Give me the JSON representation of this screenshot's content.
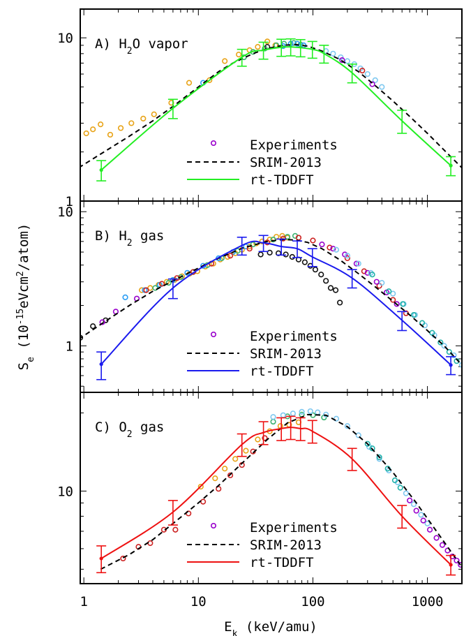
{
  "chart_data": [
    {
      "type": "scatter",
      "panel_label_parts": [
        "A) H",
        "2",
        "O vapor"
      ],
      "x_scale": "log",
      "y_scale": "log",
      "xlim": [
        1,
        2000
      ],
      "ylim": [
        1,
        15
      ],
      "y_ticks": [
        {
          "value": 1,
          "label": "1"
        },
        {
          "value": 10,
          "label": "10"
        }
      ],
      "legend": {
        "position": "bottom-right",
        "entries": [
          {
            "name": "Experiments",
            "style": "marker",
            "color": "#9900cc"
          },
          {
            "name": "SRIM-2013",
            "style": "dashed",
            "color": "#000000"
          },
          {
            "name": "rt-TDDFT",
            "style": "solid",
            "color": "#22ee22"
          }
        ]
      },
      "series": [
        {
          "name": "Experiments",
          "kind": "points",
          "color": "#e8a317",
          "x": [
            1.05,
            1.2,
            1.4,
            1.7,
            2.1,
            2.6,
            3.3,
            4.1,
            5.8,
            8.3,
            12.5,
            17,
            22.5,
            28,
            33,
            40,
            47
          ],
          "y": [
            2.6,
            2.75,
            2.95,
            2.55,
            2.8,
            3.0,
            3.2,
            3.4,
            4.0,
            5.3,
            5.5,
            7.2,
            7.9,
            8.4,
            8.8,
            9.5,
            9.0
          ]
        },
        {
          "name": "Experiments",
          "kind": "points",
          "color": "#3cb371",
          "x": [
            25,
            30,
            38,
            48,
            56,
            68,
            78
          ],
          "y": [
            7.6,
            8.2,
            8.6,
            9.0,
            9.2,
            9.3,
            9.1
          ]
        },
        {
          "name": "Experiments",
          "kind": "points",
          "color": "#2a9df4",
          "x": [
            11,
            55,
            64,
            73,
            83
          ],
          "y": [
            5.3,
            8.9,
            9.2,
            9.2,
            9.0
          ]
        },
        {
          "name": "Experiments",
          "kind": "points",
          "color": "#7ec8f0",
          "x": [
            130,
            150,
            175,
            200,
            230,
            260,
            300,
            350,
            400
          ],
          "y": [
            8.3,
            8.0,
            7.6,
            7.2,
            6.9,
            6.5,
            6.0,
            5.5,
            5.0
          ]
        },
        {
          "name": "Experiments",
          "kind": "points",
          "color": "#9900cc",
          "x": [
            180,
            330
          ],
          "y": [
            7.3,
            5.2
          ]
        },
        {
          "name": "Experiments",
          "kind": "points",
          "color": "#cc2222",
          "x": [
            270
          ],
          "y": [
            6.3
          ]
        },
        {
          "name": "Experiments",
          "kind": "points",
          "color": "#222222",
          "x": [
            40
          ],
          "y": [
            8.8
          ]
        },
        {
          "name": "SRIM-2013",
          "kind": "dashed",
          "color": "#000000",
          "x": [
            0.9,
            1.5,
            2.5,
            4,
            6,
            10,
            15,
            20,
            30,
            40,
            55,
            70,
            90,
            120,
            170,
            250,
            350,
            500,
            700,
            1000,
            1400,
            2000
          ],
          "y": [
            1.6,
            2.0,
            2.5,
            3.1,
            3.8,
            5.0,
            6.2,
            7.0,
            8.0,
            8.6,
            9.0,
            9.1,
            8.9,
            8.3,
            7.4,
            6.2,
            5.1,
            4.1,
            3.3,
            2.6,
            2.05,
            1.6
          ]
        },
        {
          "name": "rt-TDDFT",
          "kind": "solid",
          "color": "#22ee22",
          "x": [
            1.42,
            6,
            24,
            37,
            53,
            64,
            78,
            99,
            125,
            220,
            600,
            1600
          ],
          "y": [
            1.55,
            3.7,
            7.6,
            8.4,
            8.75,
            8.8,
            8.7,
            8.5,
            8.0,
            6.1,
            3.1,
            1.65
          ],
          "err": [
            0.22,
            0.5,
            0.9,
            1.0,
            1.05,
            1.05,
            1.05,
            1.0,
            1.0,
            0.8,
            0.5,
            0.22
          ],
          "markers_at": [
            0,
            11
          ]
        }
      ]
    },
    {
      "type": "scatter",
      "panel_label_parts": [
        "B) H",
        "2",
        " gas"
      ],
      "x_scale": "log",
      "y_scale": "log",
      "xlim": [
        1,
        2000
      ],
      "ylim": [
        0.45,
        12
      ],
      "y_ticks": [
        {
          "value": 1,
          "label": "1"
        },
        {
          "value": 10,
          "label": "10"
        }
      ],
      "legend": {
        "position": "bottom-right",
        "entries": [
          {
            "name": "Experiments",
            "style": "marker",
            "color": "#9900cc"
          },
          {
            "name": "SRIM-2013",
            "style": "dashed",
            "color": "#000000"
          },
          {
            "name": "rt-TDDFT",
            "style": "solid",
            "color": "#1a1aee"
          }
        ]
      },
      "series": [
        {
          "name": "Experiments",
          "kind": "points",
          "color": "#111111",
          "x": [
            0.93,
            1.2,
            1.55,
            35,
            42,
            50,
            58,
            66,
            75,
            85,
            95,
            105,
            118,
            130,
            143,
            158,
            172
          ],
          "y": [
            1.15,
            1.4,
            1.55,
            4.8,
            4.95,
            4.9,
            4.8,
            4.6,
            4.4,
            4.2,
            3.95,
            3.7,
            3.4,
            3.05,
            2.7,
            2.6,
            2.1
          ]
        },
        {
          "name": "Experiments",
          "kind": "points",
          "color": "#e8a317",
          "x": [
            3.2,
            3.8,
            4.5,
            5.3,
            6.2,
            7.2,
            8.4,
            9.8,
            11.5,
            13.5,
            15.5,
            18,
            21,
            24,
            28,
            32,
            36,
            42,
            48,
            54,
            60
          ],
          "y": [
            2.6,
            2.7,
            2.85,
            3.0,
            3.1,
            3.3,
            3.45,
            3.6,
            3.9,
            4.1,
            4.4,
            4.6,
            4.9,
            5.2,
            5.5,
            5.8,
            6.0,
            6.2,
            6.5,
            6.6,
            6.4
          ]
        },
        {
          "name": "Experiments",
          "kind": "points",
          "color": "#3cb371",
          "x": [
            4.2,
            5.5,
            7,
            9,
            12,
            16,
            22,
            30,
            45,
            60,
            70
          ],
          "y": [
            2.7,
            2.95,
            3.25,
            3.55,
            4.0,
            4.5,
            5.1,
            5.7,
            6.2,
            6.5,
            6.6
          ]
        },
        {
          "name": "Experiments",
          "kind": "points",
          "color": "#2a9df4",
          "x": [
            2.3,
            3.4,
            4.6,
            6,
            8,
            11,
            15,
            20,
            26
          ],
          "y": [
            2.3,
            2.6,
            2.85,
            3.1,
            3.5,
            3.95,
            4.5,
            5.0,
            5.5
          ]
        },
        {
          "name": "Experiments",
          "kind": "points",
          "color": "#cc2222",
          "x": [
            3.5,
            4.8,
            6.5,
            9,
            13,
            19,
            28,
            40,
            55,
            75,
            100,
            140,
            200,
            280,
            380,
            500,
            650
          ],
          "y": [
            2.6,
            2.9,
            3.2,
            3.55,
            4.1,
            4.7,
            5.3,
            5.9,
            6.3,
            6.4,
            6.1,
            5.4,
            4.5,
            3.6,
            2.8,
            2.2,
            1.75
          ]
        },
        {
          "name": "Experiments",
          "kind": "points",
          "color": "#9900cc",
          "x": [
            1.45,
            1.9,
            2.9,
            120,
            150,
            190,
            240,
            300,
            360,
            440,
            540
          ],
          "y": [
            1.5,
            1.8,
            2.25,
            5.7,
            5.3,
            4.8,
            4.1,
            3.5,
            3.0,
            2.5,
            2.05
          ]
        },
        {
          "name": "Experiments",
          "kind": "points",
          "color": "#7ec8f0",
          "x": [
            160,
            200,
            250,
            320,
            400,
            500,
            620,
            780,
            950,
            1150,
            1400,
            1700,
            2000
          ],
          "y": [
            5.2,
            4.7,
            4.1,
            3.5,
            2.95,
            2.45,
            2.05,
            1.7,
            1.42,
            1.2,
            1.0,
            0.85,
            0.72
          ]
        },
        {
          "name": "Experiments",
          "kind": "points",
          "color": "#20b2aa",
          "x": [
            330,
            460,
            610,
            760,
            900,
            1100,
            1300,
            1550,
            1800
          ],
          "y": [
            3.4,
            2.55,
            2.05,
            1.7,
            1.48,
            1.25,
            1.06,
            0.9,
            0.77
          ]
        },
        {
          "name": "SRIM-2013",
          "kind": "dashed",
          "color": "#000000",
          "x": [
            0.9,
            1.5,
            2.5,
            4,
            6,
            10,
            15,
            25,
            40,
            55,
            70,
            90,
            120,
            170,
            250,
            350,
            500,
            700,
            1000,
            1400,
            2000
          ],
          "y": [
            1.12,
            1.5,
            2.0,
            2.55,
            3.05,
            3.8,
            4.5,
            5.4,
            6.0,
            6.2,
            6.15,
            5.9,
            5.3,
            4.4,
            3.45,
            2.75,
            2.15,
            1.7,
            1.3,
            1.0,
            0.72
          ]
        },
        {
          "name": "rt-TDDFT",
          "kind": "solid",
          "color": "#1a1aee",
          "x": [
            1.42,
            6,
            24,
            37,
            53,
            73,
            99,
            220,
            600,
            1600
          ],
          "y": [
            0.73,
            2.7,
            5.6,
            5.85,
            5.5,
            5.3,
            4.6,
            3.2,
            1.55,
            0.72
          ],
          "err": [
            0.17,
            0.45,
            0.85,
            0.8,
            0.75,
            0.75,
            0.7,
            0.5,
            0.25,
            0.11
          ],
          "markers_at": [
            0,
            9
          ]
        }
      ]
    },
    {
      "type": "scatter",
      "panel_label_parts": [
        "C) O",
        "2",
        " gas"
      ],
      "x_scale": "log",
      "y_scale": "log",
      "xlim": [
        1,
        2000
      ],
      "ylim": [
        4.4,
        24
      ],
      "y_ticks": [
        {
          "value": 10,
          "label": "10"
        }
      ],
      "xlabel_parts": [
        "E",
        "k",
        "  (keV/amu)"
      ],
      "x_ticks": [
        {
          "value": 1,
          "label": "1"
        },
        {
          "value": 10,
          "label": "10"
        },
        {
          "value": 100,
          "label": "100"
        },
        {
          "value": 1000,
          "label": "1000"
        }
      ],
      "legend": {
        "position": "bottom-right",
        "entries": [
          {
            "name": "Experiments",
            "style": "marker",
            "color": "#9900cc"
          },
          {
            "name": "SRIM-2013",
            "style": "dashed",
            "color": "#000000"
          },
          {
            "name": "rt-TDDFT",
            "style": "solid",
            "color": "#ee1111"
          }
        ]
      },
      "series": [
        {
          "name": "Experiments",
          "kind": "points",
          "color": "#cc2222",
          "x": [
            2.2,
            3.0,
            3.8,
            5.0,
            6.3,
            8.2,
            11,
            15,
            19,
            24,
            30,
            38
          ],
          "y": [
            5.5,
            6.1,
            6.3,
            7.1,
            7.1,
            8.2,
            9.1,
            10.2,
            11.5,
            12.6,
            14.2,
            16.0
          ]
        },
        {
          "name": "Experiments",
          "kind": "points",
          "color": "#e8a317",
          "x": [
            10.5,
            14,
            17,
            21,
            26,
            33,
            42,
            52,
            62,
            75
          ],
          "y": [
            10.4,
            11.2,
            12.2,
            13.3,
            14.3,
            15.8,
            17.0,
            17.8,
            18.0,
            18.4
          ]
        },
        {
          "name": "Experiments",
          "kind": "points",
          "color": "#3cb371",
          "x": [
            45,
            60,
            80,
            100,
            125
          ],
          "y": [
            18.5,
            19.4,
            19.7,
            19.6,
            19.2
          ]
        },
        {
          "name": "Experiments",
          "kind": "points",
          "color": "#7ec8f0",
          "x": [
            45,
            55,
            67,
            80,
            95,
            110,
            130,
            160,
            200,
            250,
            310,
            380,
            460,
            550,
            650,
            760,
            880,
            1000
          ],
          "y": [
            19.3,
            19.6,
            19.9,
            20.2,
            20.3,
            20.1,
            19.7,
            19.0,
            17.8,
            16.4,
            14.8,
            13.3,
            12.0,
            10.8,
            9.8,
            8.9,
            8.1,
            7.5
          ]
        },
        {
          "name": "Experiments",
          "kind": "points",
          "color": "#20b2aa",
          "x": [
            300,
            330,
            380,
            450,
            520,
            580
          ],
          "y": [
            15.2,
            14.6,
            13.5,
            12.2,
            11.0,
            10.3
          ]
        },
        {
          "name": "Experiments",
          "kind": "points",
          "color": "#9900cc",
          "x": [
            700,
            800,
            920,
            1050,
            1200,
            1350,
            1500,
            1650,
            1800,
            1950
          ],
          "y": [
            9.2,
            8.4,
            7.7,
            7.1,
            6.6,
            6.2,
            5.9,
            5.6,
            5.4,
            5.2
          ]
        },
        {
          "name": "SRIM-2013",
          "kind": "dashed",
          "color": "#000000",
          "x": [
            1.4,
            2.5,
            4,
            6,
            10,
            15,
            25,
            40,
            60,
            90,
            130,
            200,
            300,
            500,
            800,
            1200,
            2000
          ],
          "y": [
            5.0,
            5.7,
            6.5,
            7.5,
            9.0,
            10.5,
            13.0,
            15.8,
            18.3,
            19.7,
            19.6,
            17.7,
            15.2,
            11.8,
            9.0,
            7.0,
            5.1
          ]
        },
        {
          "name": "rt-TDDFT",
          "kind": "solid",
          "color": "#ee1111",
          "x": [
            1.42,
            6,
            24,
            37,
            53,
            64,
            78,
            99,
            220,
            600,
            1600
          ],
          "y": [
            5.5,
            8.3,
            15.1,
            16.8,
            17.4,
            17.6,
            17.4,
            17.0,
            13.3,
            8.0,
            5.2
          ],
          "err": [
            0.65,
            0.9,
            1.5,
            1.7,
            1.75,
            1.8,
            1.75,
            1.7,
            1.3,
            0.8,
            0.45
          ],
          "markers_at": [
            0,
            10
          ]
        }
      ]
    }
  ],
  "ylabel_parts": [
    "S",
    "e",
    " (10",
    "-15",
    "eVcm",
    "2",
    "/atom)"
  ]
}
